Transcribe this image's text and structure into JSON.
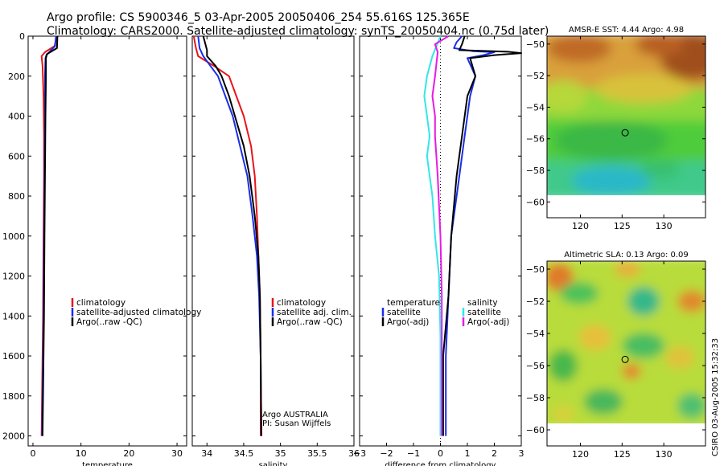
{
  "header": {
    "line1": "Argo profile: CS 5900346_5 03-Apr-2005 20050406_254 55.616S 125.365E",
    "line2": "Climatology: CARS2000. Satellite-adjusted climatology: synTS_20050404.nc (0.75d later)"
  },
  "colors": {
    "climatology": "#e8141b",
    "satellite": "#1a2ee6",
    "argo": "#000000",
    "sal_satellite": "#33e6e6",
    "sal_argo": "#e61ae6"
  },
  "chart_data": [
    {
      "id": "temperature",
      "type": "line",
      "xlabel": "temperature",
      "ylabel": "",
      "xlim": [
        -1,
        32
      ],
      "ylim": [
        2050,
        0
      ],
      "xticks": [
        0,
        10,
        20,
        30
      ],
      "yticks": [
        0,
        200,
        400,
        600,
        800,
        1000,
        1200,
        1400,
        1600,
        1800,
        2000
      ],
      "legend": [
        "climatology",
        "satellite-adjusted climatology",
        "Argo(..raw -QC)"
      ],
      "series": [
        {
          "name": "climatology",
          "color": "climatology",
          "points": [
            [
              5.0,
              0
            ],
            [
              4.5,
              50
            ],
            [
              2.5,
              80
            ],
            [
              1.8,
              100
            ],
            [
              2.0,
              150
            ],
            [
              2.2,
              300
            ],
            [
              2.3,
              500
            ],
            [
              2.3,
              700
            ],
            [
              2.2,
              1000
            ],
            [
              2.1,
              1400
            ],
            [
              1.9,
              1800
            ],
            [
              1.8,
              2000
            ]
          ]
        },
        {
          "name": "satellite-adjusted climatology",
          "color": "satellite",
          "points": [
            [
              4.8,
              0
            ],
            [
              4.6,
              50
            ],
            [
              2.8,
              95
            ],
            [
              2.6,
              110
            ],
            [
              2.5,
              200
            ],
            [
              2.5,
              400
            ],
            [
              2.4,
              700
            ],
            [
              2.3,
              1000
            ],
            [
              2.2,
              1400
            ],
            [
              2.0,
              1800
            ],
            [
              1.9,
              2000
            ]
          ]
        },
        {
          "name": "Argo(..raw -QC)",
          "color": "argo",
          "points": [
            [
              5.1,
              0
            ],
            [
              5.0,
              60
            ],
            [
              2.9,
              90
            ],
            [
              2.7,
              110
            ],
            [
              2.7,
              200
            ],
            [
              2.6,
              400
            ],
            [
              2.5,
              700
            ],
            [
              2.4,
              1000
            ],
            [
              2.3,
              1400
            ],
            [
              2.1,
              1800
            ],
            [
              2.0,
              2000
            ]
          ]
        }
      ]
    },
    {
      "id": "salinity",
      "type": "line",
      "xlabel": "salinity",
      "ylabel": "",
      "xlim": [
        33.8,
        36.0
      ],
      "ylim": [
        2050,
        0
      ],
      "xticks": [
        34,
        34.5,
        35,
        35.5,
        36
      ],
      "yticks": [
        0,
        200,
        400,
        600,
        800,
        1000,
        1200,
        1400,
        1600,
        1800,
        2000
      ],
      "legend": [
        "climatology",
        "satellite adj. clim.",
        "Argo(..raw -QC)"
      ],
      "annotation": [
        "Argo AUSTRALIA",
        "PI: Susan Wijffels"
      ],
      "series": [
        {
          "name": "climatology",
          "color": "climatology",
          "points": [
            [
              33.82,
              0
            ],
            [
              33.85,
              60
            ],
            [
              33.88,
              100
            ],
            [
              34.1,
              150
            ],
            [
              34.3,
              200
            ],
            [
              34.4,
              300
            ],
            [
              34.5,
              400
            ],
            [
              34.6,
              550
            ],
            [
              34.65,
              700
            ],
            [
              34.68,
              900
            ],
            [
              34.7,
              1100
            ],
            [
              34.72,
              1300
            ],
            [
              34.73,
              1600
            ],
            [
              34.73,
              2000
            ]
          ]
        },
        {
          "name": "satellite adj. clim.",
          "color": "satellite",
          "points": [
            [
              33.88,
              0
            ],
            [
              33.9,
              60
            ],
            [
              33.95,
              100
            ],
            [
              34.05,
              150
            ],
            [
              34.15,
              200
            ],
            [
              34.25,
              300
            ],
            [
              34.35,
              400
            ],
            [
              34.45,
              550
            ],
            [
              34.55,
              700
            ],
            [
              34.62,
              900
            ],
            [
              34.68,
              1100
            ],
            [
              34.71,
              1300
            ],
            [
              34.73,
              1600
            ],
            [
              34.74,
              2000
            ]
          ]
        },
        {
          "name": "Argo(..raw -QC)",
          "color": "argo",
          "points": [
            [
              33.95,
              0
            ],
            [
              34.0,
              70
            ],
            [
              34.0,
              100
            ],
            [
              34.12,
              150
            ],
            [
              34.2,
              200
            ],
            [
              34.3,
              300
            ],
            [
              34.38,
              400
            ],
            [
              34.5,
              550
            ],
            [
              34.58,
              700
            ],
            [
              34.65,
              900
            ],
            [
              34.7,
              1100
            ],
            [
              34.72,
              1300
            ],
            [
              34.73,
              1600
            ],
            [
              34.74,
              2000
            ]
          ]
        }
      ]
    },
    {
      "id": "difference",
      "type": "line",
      "xlabel": "difference from climatology",
      "ylabel": "",
      "xlim": [
        -3,
        3
      ],
      "ylim": [
        2050,
        0
      ],
      "xticks": [
        -3,
        -2,
        -1,
        0,
        1,
        2,
        3
      ],
      "yticks": [
        0,
        200,
        400,
        600,
        800,
        1000,
        1200,
        1400,
        1600,
        1800,
        2000
      ],
      "legend_left_title": "temperature",
      "legend_left": [
        "satellite",
        "Argo(-adj)"
      ],
      "legend_right_title": "salinity",
      "legend_right": [
        "satellite",
        "Argo(-adj)"
      ],
      "series": [
        {
          "name": "temperature satellite",
          "color": "satellite",
          "points": [
            [
              0.8,
              0
            ],
            [
              0.6,
              30
            ],
            [
              0.5,
              60
            ],
            [
              1.2,
              75
            ],
            [
              2.0,
              80
            ],
            [
              1.6,
              95
            ],
            [
              1.0,
              110
            ],
            [
              1.3,
              200
            ],
            [
              1.1,
              300
            ],
            [
              0.9,
              500
            ],
            [
              0.7,
              700
            ],
            [
              0.4,
              1000
            ],
            [
              0.3,
              1300
            ],
            [
              0.2,
              1600
            ],
            [
              0.2,
              2000
            ]
          ]
        },
        {
          "name": "temperature Argo(-adj)",
          "color": "argo",
          "points": [
            [
              0.9,
              0
            ],
            [
              0.8,
              40
            ],
            [
              0.7,
              70
            ],
            [
              2.5,
              78
            ],
            [
              3.0,
              85
            ],
            [
              2.0,
              95
            ],
            [
              1.1,
              110
            ],
            [
              1.3,
              200
            ],
            [
              1.0,
              300
            ],
            [
              0.8,
              500
            ],
            [
              0.6,
              700
            ],
            [
              0.4,
              1000
            ],
            [
              0.3,
              1300
            ],
            [
              0.1,
              1600
            ],
            [
              0.1,
              2000
            ]
          ]
        },
        {
          "name": "salinity satellite",
          "color": "sal_satellite",
          "points": [
            [
              0.0,
              0
            ],
            [
              -0.3,
              100
            ],
            [
              -0.5,
              200
            ],
            [
              -0.6,
              300
            ],
            [
              -0.5,
              400
            ],
            [
              -0.4,
              500
            ],
            [
              -0.5,
              600
            ],
            [
              -0.4,
              700
            ],
            [
              -0.3,
              800
            ],
            [
              -0.2,
              1000
            ],
            [
              -0.05,
              1200
            ],
            [
              0.0,
              1500
            ],
            [
              0.0,
              2000
            ]
          ]
        },
        {
          "name": "salinity Argo(-adj)",
          "color": "sal_argo",
          "points": [
            [
              0.3,
              0
            ],
            [
              -0.2,
              40
            ],
            [
              -0.1,
              80
            ],
            [
              -0.2,
              200
            ],
            [
              -0.3,
              300
            ],
            [
              -0.2,
              400
            ],
            [
              -0.2,
              500
            ],
            [
              -0.1,
              700
            ],
            [
              0.0,
              1000
            ],
            [
              0.05,
              1300
            ],
            [
              0.05,
              1600
            ],
            [
              0.05,
              2000
            ]
          ]
        }
      ]
    },
    {
      "id": "sst_map",
      "type": "heatmap",
      "title": "AMSR-E SST: 4.44 Argo: 4.98",
      "xlim": [
        116,
        135
      ],
      "ylim": [
        -61,
        -49.5
      ],
      "xticks": [
        120,
        125,
        130
      ],
      "yticks": [
        -50,
        -52,
        -54,
        -56,
        -58,
        -60
      ],
      "data_extent_lat": [
        -60,
        -49.5
      ],
      "marker": [
        125.365,
        -55.616
      ]
    },
    {
      "id": "sla_map",
      "type": "heatmap",
      "title": "Altimetric SLA: 0.13 Argo: 0.09",
      "xlim": [
        116,
        135
      ],
      "ylim": [
        -61,
        -49.5
      ],
      "xticks": [
        120,
        125,
        130
      ],
      "yticks": [
        -50,
        -52,
        -54,
        -56,
        -58,
        -60
      ],
      "data_extent_lat": [
        -60,
        -49.5
      ],
      "marker": [
        125.365,
        -55.616
      ]
    }
  ],
  "footer": {
    "credit": "CSIRO 03-Aug-2005 15:32:33"
  }
}
